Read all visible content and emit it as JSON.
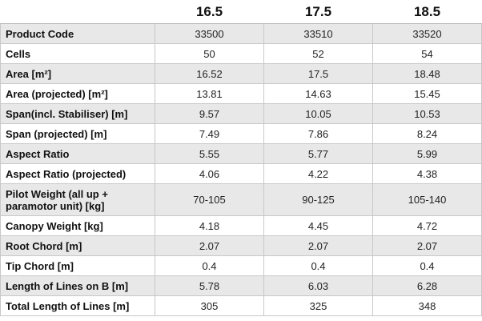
{
  "table": {
    "columns": [
      "16.5",
      "17.5",
      "18.5"
    ],
    "rows": [
      {
        "label": "Product Code",
        "values": [
          "33500",
          "33510",
          "33520"
        ]
      },
      {
        "label": "Cells",
        "values": [
          "50",
          "52",
          "54"
        ]
      },
      {
        "label": "Area [m²]",
        "values": [
          "16.52",
          "17.5",
          "18.48"
        ]
      },
      {
        "label": "Area (projected) [m²]",
        "values": [
          "13.81",
          "14.63",
          "15.45"
        ]
      },
      {
        "label": "Span(incl. Stabiliser) [m]",
        "values": [
          "9.57",
          "10.05",
          "10.53"
        ]
      },
      {
        "label": "Span (projected) [m]",
        "values": [
          "7.49",
          "7.86",
          "8.24"
        ]
      },
      {
        "label": "Aspect Ratio",
        "values": [
          "5.55",
          "5.77",
          "5.99"
        ]
      },
      {
        "label": "Aspect Ratio (projected)",
        "values": [
          "4.06",
          "4.22",
          "4.38"
        ]
      },
      {
        "label": "Pilot Weight (all up + paramotor unit) [kg]",
        "values": [
          "70-105",
          "90-125",
          "105-140"
        ]
      },
      {
        "label": "Canopy Weight [kg]",
        "values": [
          "4.18",
          "4.45",
          "4.72"
        ]
      },
      {
        "label": "Root Chord [m]",
        "values": [
          "2.07",
          "2.07",
          "2.07"
        ]
      },
      {
        "label": "Tip Chord [m]",
        "values": [
          "0.4",
          "0.4",
          "0.4"
        ]
      },
      {
        "label": "Length of Lines on B [m]",
        "values": [
          "5.78",
          "6.03",
          "6.28"
        ]
      },
      {
        "label": "Total Length of Lines [m]",
        "values": [
          "305",
          "325",
          "348"
        ]
      }
    ]
  }
}
